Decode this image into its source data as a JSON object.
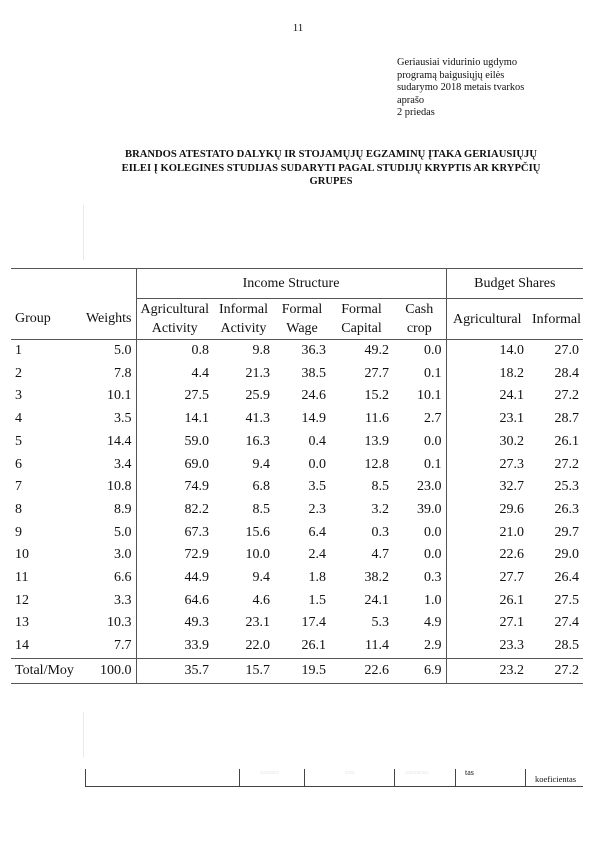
{
  "page_number": "11",
  "annex_note": [
    "Geriausiai vidurinio ugdymo",
    "programą baigusiųjų eilės",
    "sudarymo 2018 metais tvarkos",
    "aprašo",
    "2 priedas"
  ],
  "title_lines": [
    "BRANDOS ATESTATO DALYKŲ IR STOJAMŲJŲ EGZAMINŲ ĮTAKA GERIAUSIŲJŲ",
    "EILEI Į KOLEGINES STUDIJAS SUDARYTI PAGAL STUDIJŲ KRYPTIS AR KRYPČIŲ",
    "GRUPES"
  ],
  "table": {
    "group_headers": {
      "income": "Income Structure",
      "budget": "Budget Shares"
    },
    "columns": [
      {
        "line1": "Group",
        "line2": ""
      },
      {
        "line1": "Weights",
        "line2": ""
      },
      {
        "line1": "Agricultural",
        "line2": "Activity"
      },
      {
        "line1": "Informal",
        "line2": "Activity"
      },
      {
        "line1": "Formal",
        "line2": "Wage"
      },
      {
        "line1": "Formal",
        "line2": "Capital"
      },
      {
        "line1": "Cash",
        "line2": "crop"
      },
      {
        "line1": "Agricultural",
        "line2": ""
      },
      {
        "line1": "Informal",
        "line2": ""
      }
    ],
    "rows": [
      [
        "1",
        "5.0",
        "0.8",
        "9.8",
        "36.3",
        "49.2",
        "0.0",
        "14.0",
        "27.0"
      ],
      [
        "2",
        "7.8",
        "4.4",
        "21.3",
        "38.5",
        "27.7",
        "0.1",
        "18.2",
        "28.4"
      ],
      [
        "3",
        "10.1",
        "27.5",
        "25.9",
        "24.6",
        "15.2",
        "10.1",
        "24.1",
        "27.2"
      ],
      [
        "4",
        "3.5",
        "14.1",
        "41.3",
        "14.9",
        "11.6",
        "2.7",
        "23.1",
        "28.7"
      ],
      [
        "5",
        "14.4",
        "59.0",
        "16.3",
        "0.4",
        "13.9",
        "0.0",
        "30.2",
        "26.1"
      ],
      [
        "6",
        "3.4",
        "69.0",
        "9.4",
        "0.0",
        "12.8",
        "0.1",
        "27.3",
        "27.2"
      ],
      [
        "7",
        "10.8",
        "74.9",
        "6.8",
        "3.5",
        "8.5",
        "23.0",
        "32.7",
        "25.3"
      ],
      [
        "8",
        "8.9",
        "82.2",
        "8.5",
        "2.3",
        "3.2",
        "39.0",
        "29.6",
        "26.3"
      ],
      [
        "9",
        "5.0",
        "67.3",
        "15.6",
        "6.4",
        "0.3",
        "0.0",
        "21.0",
        "29.7"
      ],
      [
        "10",
        "3.0",
        "72.9",
        "10.0",
        "2.4",
        "4.7",
        "0.0",
        "22.6",
        "29.0"
      ],
      [
        "11",
        "6.6",
        "44.9",
        "9.4",
        "1.8",
        "38.2",
        "0.3",
        "27.7",
        "26.4"
      ],
      [
        "12",
        "3.3",
        "64.6",
        "4.6",
        "1.5",
        "24.1",
        "1.0",
        "26.1",
        "27.5"
      ],
      [
        "13",
        "10.3",
        "49.3",
        "23.1",
        "17.4",
        "5.3",
        "4.9",
        "27.1",
        "27.4"
      ],
      [
        "14",
        "7.7",
        "33.9",
        "22.0",
        "26.1",
        "11.4",
        "2.9",
        "23.3",
        "28.5"
      ]
    ],
    "total": [
      "Total/Moy",
      "100.0",
      "35.7",
      "15.7",
      "19.5",
      "22.6",
      "6.9",
      "23.2",
      "27.2"
    ]
  },
  "footer_fragments": {
    "text1": "tas",
    "text2": "koeficientas"
  }
}
